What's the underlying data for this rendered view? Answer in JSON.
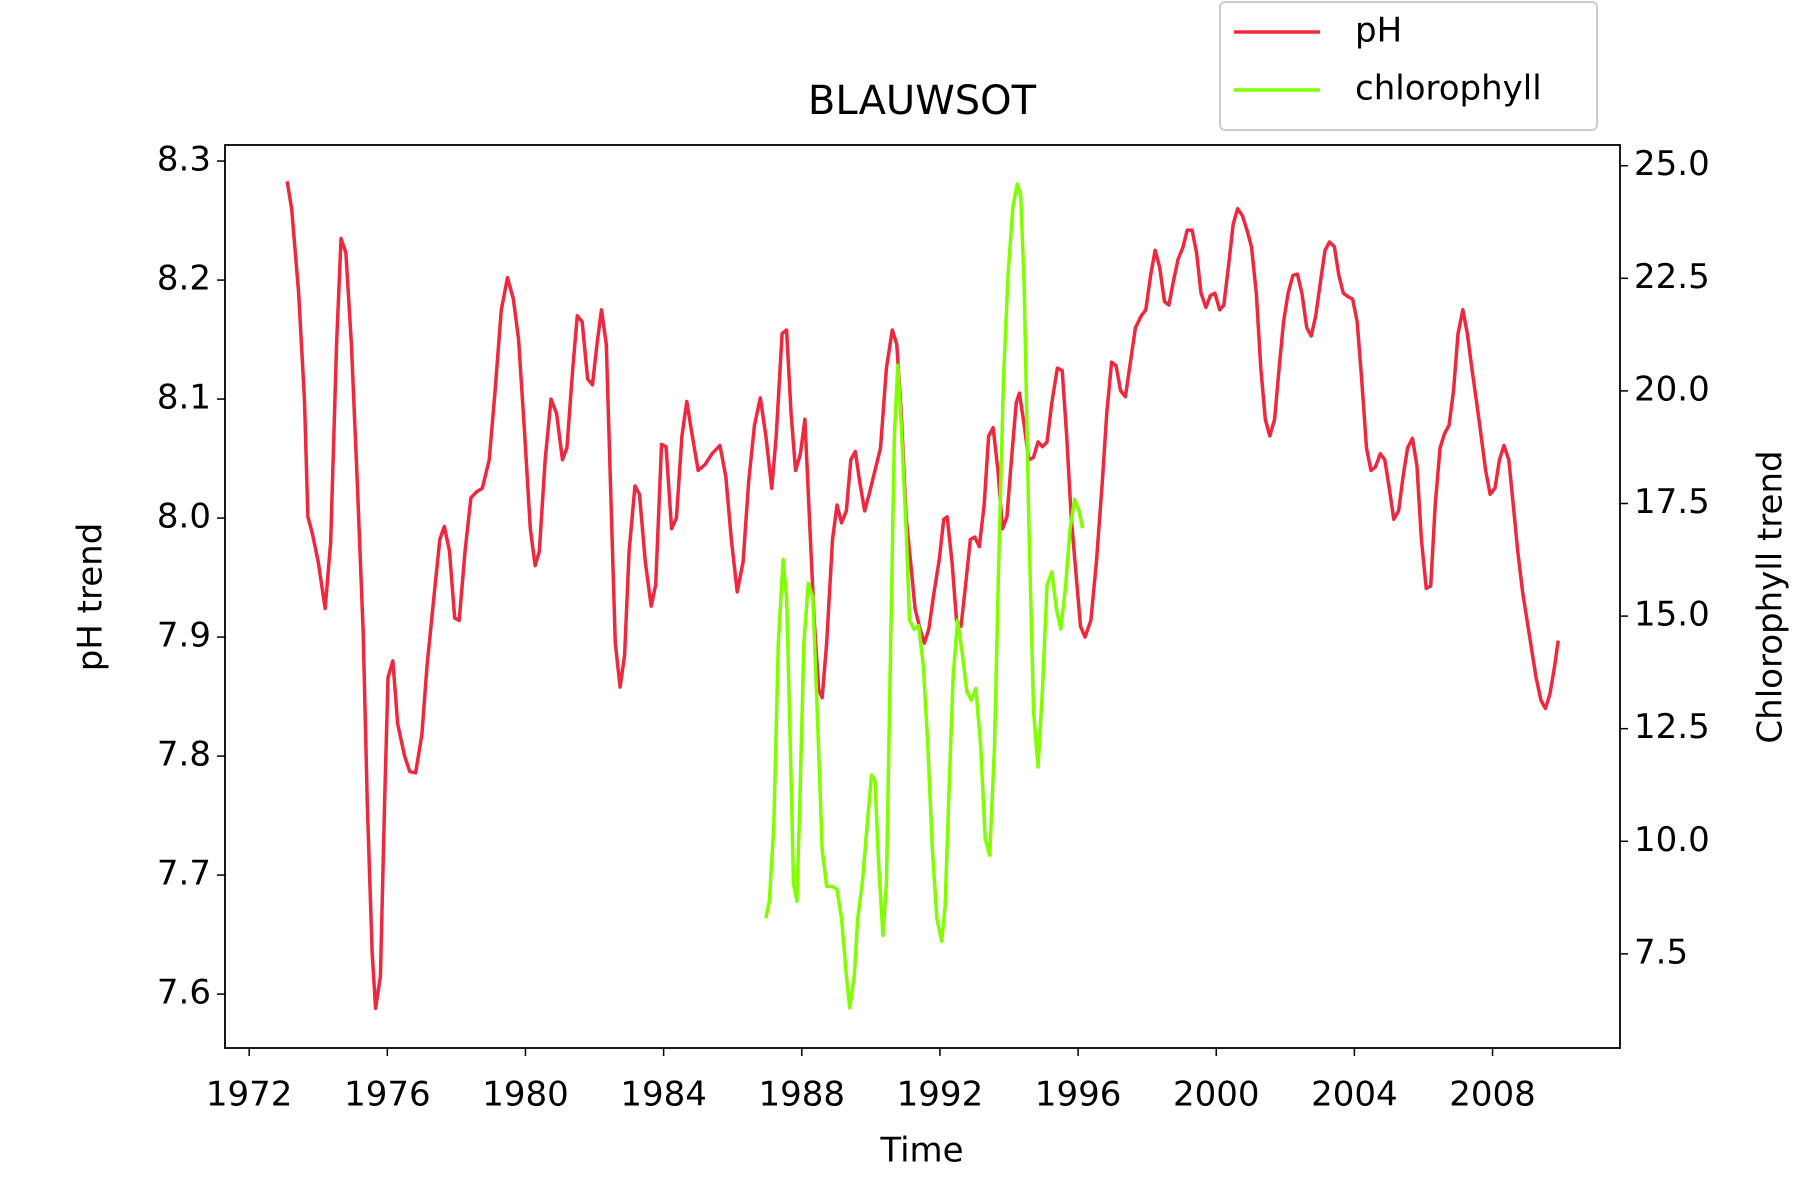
{
  "chart_data": {
    "type": "line",
    "title": "BLAUWSOT",
    "xlabel": "Time",
    "ylabel": "pH trend",
    "y2label": "Chlorophyll trend",
    "legend": "upper right",
    "xlim": [
      1971.3,
      2011.69
    ],
    "xticks": [
      1972,
      1976,
      1980,
      1984,
      1988,
      1992,
      1996,
      2000,
      2004,
      2008
    ],
    "ylim": [
      7.5547,
      8.3135
    ],
    "yticks": [
      7.6,
      7.7,
      7.8,
      7.9,
      {
        "value": 8,
        "label": "8.0"
      },
      8.1,
      8.2,
      8.3
    ],
    "y2lim": [
      5.41,
      25.46
    ],
    "y2ticks": [
      7.5,
      {
        "value": 10,
        "label": "10.0"
      },
      12.5,
      {
        "value": 15,
        "label": "15.0"
      },
      17.5,
      {
        "value": 20,
        "label": "20.0"
      },
      22.5,
      {
        "value": 25,
        "label": "25.0"
      }
    ],
    "series": [
      {
        "name": "pH",
        "color": "#f0283e",
        "x": [
          1973.1,
          1973.23,
          1973.43,
          1973.6,
          1973.7,
          1973.83,
          1974.0,
          1974.2,
          1974.36,
          1974.53,
          1974.66,
          1974.8,
          1974.96,
          1975.13,
          1975.3,
          1975.42,
          1975.56,
          1975.66,
          1975.8,
          1975.92,
          1976.02,
          1976.16,
          1976.3,
          1976.5,
          1976.65,
          1976.82,
          1977.0,
          1977.15,
          1977.35,
          1977.52,
          1977.65,
          1977.8,
          1977.95,
          1978.08,
          1978.25,
          1978.42,
          1978.58,
          1978.75,
          1978.95,
          1979.12,
          1979.3,
          1979.48,
          1979.65,
          1979.8,
          1979.98,
          1980.14,
          1980.28,
          1980.4,
          1980.57,
          1980.74,
          1980.9,
          1981.07,
          1981.2,
          1981.37,
          1981.5,
          1981.64,
          1981.8,
          1981.94,
          1982.07,
          1982.2,
          1982.34,
          1982.47,
          1982.6,
          1982.74,
          1982.87,
          1983.0,
          1983.17,
          1983.3,
          1983.47,
          1983.64,
          1983.77,
          1983.94,
          1984.07,
          1984.23,
          1984.37,
          1984.53,
          1984.67,
          1984.83,
          1985.0,
          1985.2,
          1985.4,
          1985.63,
          1985.8,
          1985.96,
          1986.13,
          1986.3,
          1986.46,
          1986.63,
          1986.8,
          1986.96,
          1987.13,
          1987.26,
          1987.43,
          1987.56,
          1987.69,
          1987.82,
          1987.96,
          1988.09,
          1988.22,
          1988.36,
          1988.49,
          1988.59,
          1988.72,
          1988.89,
          1989.02,
          1989.15,
          1989.29,
          1989.42,
          1989.55,
          1989.68,
          1989.82,
          1989.95,
          1990.12,
          1990.28,
          1990.45,
          1990.62,
          1990.75,
          1990.88,
          1991.02,
          1991.15,
          1991.28,
          1991.42,
          1991.55,
          1991.68,
          1991.81,
          1991.98,
          1992.11,
          1992.21,
          1992.35,
          1992.48,
          1992.61,
          1992.74,
          1992.88,
          1993.01,
          1993.14,
          1993.28,
          1993.41,
          1993.54,
          1993.68,
          1993.81,
          1993.94,
          1994.07,
          1994.21,
          1994.3,
          1994.44,
          1994.57,
          1994.71,
          1994.84,
          1994.97,
          1995.1,
          1995.24,
          1995.4,
          1995.54,
          1995.67,
          1995.8,
          1995.94,
          1996.07,
          1996.2,
          1996.37,
          1996.53,
          1996.7,
          1996.83,
          1996.97,
          1997.1,
          1997.23,
          1997.37,
          1997.5,
          1997.66,
          1997.83,
          1997.96,
          1998.1,
          1998.23,
          1998.36,
          1998.5,
          1998.63,
          1998.76,
          1998.9,
          1999.03,
          1999.16,
          1999.3,
          1999.43,
          1999.56,
          1999.7,
          1999.83,
          1999.96,
          2000.1,
          2000.22,
          2000.36,
          2000.49,
          2000.62,
          2000.76,
          2000.89,
          2001.02,
          2001.16,
          2001.29,
          2001.42,
          2001.55,
          2001.69,
          2001.82,
          2001.95,
          2002.08,
          2002.22,
          2002.35,
          2002.48,
          2002.62,
          2002.75,
          2002.88,
          2003.02,
          2003.15,
          2003.28,
          2003.42,
          2003.55,
          2003.68,
          2003.82,
          2003.95,
          2004.08,
          2004.21,
          2004.35,
          2004.48,
          2004.61,
          2004.75,
          2004.88,
          2005.01,
          2005.14,
          2005.28,
          2005.41,
          2005.54,
          2005.68,
          2005.81,
          2005.94,
          2006.08,
          2006.21,
          2006.34,
          2006.48,
          2006.61,
          2006.74,
          2006.87,
          2007.0,
          2007.14,
          2007.27,
          2007.4,
          2007.54,
          2007.67,
          2007.8,
          2007.93,
          2008.07,
          2008.2,
          2008.33,
          2008.47,
          2008.6,
          2008.73,
          2008.87,
          2009.0,
          2009.13,
          2009.26,
          2009.4,
          2009.53,
          2009.66,
          2009.8,
          2009.9
        ],
        "values": [
          8.283,
          8.26,
          8.19,
          8.1,
          8.001,
          7.987,
          7.963,
          7.924,
          7.98,
          8.146,
          8.235,
          8.223,
          8.146,
          8.03,
          7.905,
          7.76,
          7.635,
          7.588,
          7.615,
          7.76,
          7.866,
          7.88,
          7.827,
          7.8,
          7.787,
          7.786,
          7.818,
          7.876,
          7.934,
          7.982,
          7.993,
          7.972,
          7.916,
          7.914,
          7.972,
          8.017,
          8.022,
          8.025,
          8.049,
          8.107,
          8.175,
          8.202,
          8.184,
          8.15,
          8.069,
          7.991,
          7.96,
          7.972,
          8.049,
          8.1,
          8.088,
          8.049,
          8.059,
          8.126,
          8.17,
          8.165,
          8.117,
          8.112,
          8.146,
          8.175,
          8.146,
          8.02,
          7.895,
          7.858,
          7.885,
          7.972,
          8.027,
          8.02,
          7.963,
          7.926,
          7.944,
          8.062,
          8.06,
          7.991,
          8.0,
          8.069,
          8.098,
          8.069,
          8.04,
          8.045,
          8.054,
          8.061,
          8.035,
          7.982,
          7.938,
          7.963,
          8.03,
          8.078,
          8.101,
          8.069,
          8.025,
          8.069,
          8.155,
          8.158,
          8.088,
          8.04,
          8.054,
          8.083,
          8.001,
          7.914,
          7.856,
          7.849,
          7.895,
          7.982,
          8.011,
          7.996,
          8.006,
          8.049,
          8.056,
          8.03,
          8.006,
          8.02,
          8.04,
          8.059,
          8.126,
          8.158,
          8.146,
          8.088,
          8.001,
          7.963,
          7.924,
          7.907,
          7.895,
          7.907,
          7.934,
          7.965,
          7.999,
          8.001,
          7.963,
          7.914,
          7.909,
          7.943,
          7.982,
          7.984,
          7.976,
          8.011,
          8.069,
          8.076,
          8.04,
          7.991,
          8.001,
          8.049,
          8.097,
          8.105,
          8.078,
          8.049,
          8.051,
          8.064,
          8.06,
          8.064,
          8.097,
          8.126,
          8.124,
          8.069,
          8.001,
          7.953,
          7.909,
          7.9,
          7.914,
          7.963,
          8.03,
          8.088,
          8.131,
          8.128,
          8.107,
          8.102,
          8.128,
          8.16,
          8.17,
          8.175,
          8.204,
          8.225,
          8.211,
          8.182,
          8.179,
          8.199,
          8.218,
          8.227,
          8.242,
          8.242,
          8.223,
          8.189,
          8.177,
          8.187,
          8.189,
          8.175,
          8.179,
          8.213,
          8.247,
          8.26,
          8.254,
          8.242,
          8.228,
          8.189,
          8.126,
          8.083,
          8.069,
          8.083,
          8.126,
          8.165,
          8.189,
          8.204,
          8.205,
          8.189,
          8.16,
          8.153,
          8.17,
          8.199,
          8.225,
          8.232,
          8.228,
          8.204,
          8.189,
          8.186,
          8.184,
          8.165,
          8.117,
          8.059,
          8.04,
          8.043,
          8.054,
          8.049,
          8.025,
          7.999,
          8.006,
          8.035,
          8.059,
          8.067,
          8.044,
          7.982,
          7.941,
          7.943,
          8.011,
          8.059,
          8.071,
          8.078,
          8.107,
          8.155,
          8.175,
          8.155,
          8.126,
          8.097,
          8.069,
          8.04,
          8.02,
          8.025,
          8.049,
          8.061,
          8.049,
          8.011,
          7.972,
          7.938,
          7.914,
          7.89,
          7.866,
          7.847,
          7.84,
          7.852,
          7.876,
          7.897
        ]
      },
      {
        "name": "chlorophyll",
        "color": "#7fff00",
        "axis": "y2",
        "x": [
          1986.96,
          1987.06,
          1987.19,
          1987.32,
          1987.46,
          1987.56,
          1987.66,
          1987.76,
          1987.86,
          1987.96,
          1988.06,
          1988.19,
          1988.32,
          1988.46,
          1988.59,
          1988.72,
          1988.89,
          1989.02,
          1989.15,
          1989.29,
          1989.39,
          1989.52,
          1989.62,
          1989.75,
          1989.89,
          1990.02,
          1990.12,
          1990.22,
          1990.35,
          1990.45,
          1990.58,
          1990.68,
          1990.78,
          1990.88,
          1991.02,
          1991.12,
          1991.25,
          1991.38,
          1991.52,
          1991.65,
          1991.78,
          1991.91,
          1992.05,
          1992.15,
          1992.25,
          1992.38,
          1992.51,
          1992.64,
          1992.78,
          1992.91,
          1993.04,
          1993.18,
          1993.31,
          1993.44,
          1993.58,
          1993.71,
          1993.84,
          1993.97,
          1994.11,
          1994.24,
          1994.34,
          1994.44,
          1994.57,
          1994.71,
          1994.84,
          1994.97,
          1995.1,
          1995.24,
          1995.37,
          1995.5,
          1995.64,
          1995.77,
          1995.9,
          1996.03,
          1996.13
        ],
        "values": [
          8.29,
          8.67,
          10.33,
          14.4,
          16.26,
          15.42,
          12.37,
          9.06,
          8.67,
          11.35,
          14.4,
          15.73,
          15.42,
          12.62,
          9.82,
          9.0,
          9.0,
          8.93,
          8.29,
          7.02,
          6.3,
          7.02,
          8.29,
          9.06,
          10.33,
          11.47,
          11.35,
          9.57,
          7.91,
          9.06,
          14.66,
          18.99,
          20.57,
          19.24,
          16.95,
          14.91,
          14.71,
          14.79,
          13.89,
          12.11,
          9.82,
          8.29,
          7.78,
          8.55,
          10.84,
          13.64,
          14.91,
          14.2,
          13.33,
          13.13,
          13.39,
          12.11,
          10.07,
          9.69,
          12.11,
          16.44,
          20.26,
          22.55,
          24.08,
          24.59,
          24.34,
          22.3,
          17.21,
          12.88,
          11.65,
          13.39,
          15.68,
          15.98,
          15.17,
          14.71,
          15.68,
          16.95,
          17.59,
          17.33,
          16.95
        ]
      }
    ]
  }
}
